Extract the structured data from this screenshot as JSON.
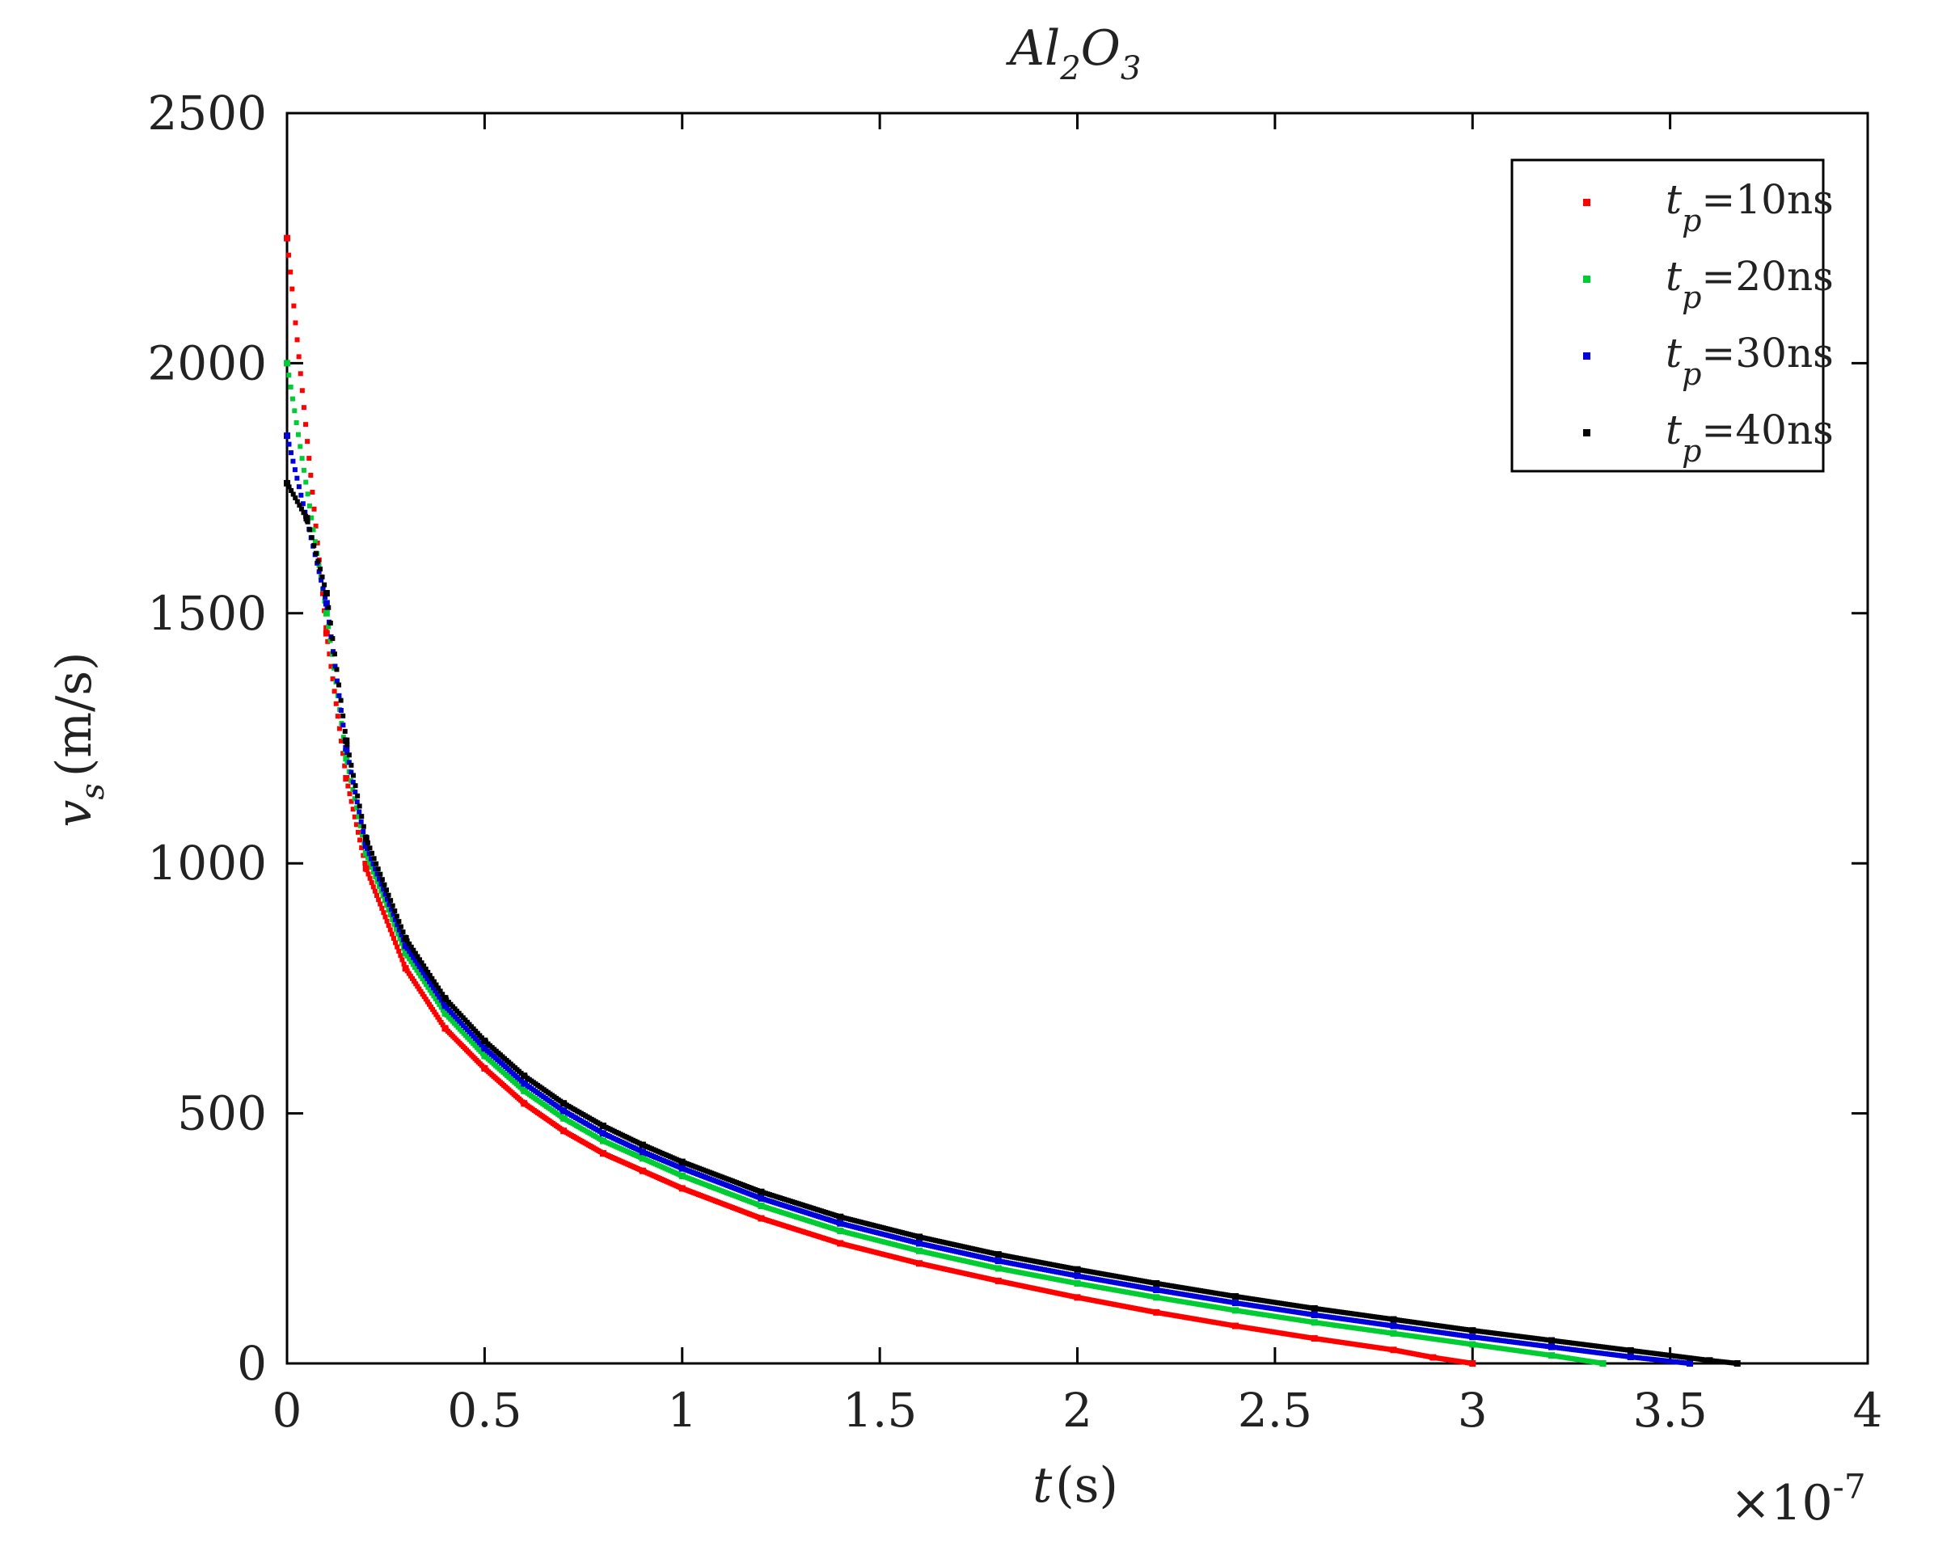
{
  "chart_data": {
    "type": "scatter",
    "title": "Al2O3",
    "title_parts": {
      "base1": "Al",
      "sub1": "2",
      "base2": "O",
      "sub2": "3"
    },
    "xlabel": "t (s)",
    "xlabel_parts": {
      "var": "t",
      "unit": "(s)"
    },
    "ylabel": "v_s (m/s)",
    "ylabel_parts": {
      "var": "v",
      "sub": "s",
      "unit": "(m/s)"
    },
    "x_scale_note": "×10^-7",
    "x_scale_parts": {
      "times": "×10",
      "exp": "-7"
    },
    "x_scale_factor": 1e-07,
    "xlim": [
      0,
      4
    ],
    "ylim": [
      0,
      2500
    ],
    "xticks": [
      "0",
      "0.5",
      "1",
      "1.5",
      "2",
      "2.5",
      "3",
      "3.5",
      "4"
    ],
    "yticks": [
      "0",
      "500",
      "1000",
      "1500",
      "2000",
      "2500"
    ],
    "grid": false,
    "legend_position": "top-right",
    "series": [
      {
        "name": "t_p=10ns",
        "label_parts": {
          "var": "t",
          "sub": "p",
          "rest": "=10ns"
        },
        "color": "#ff0000",
        "x": [
          0.0,
          0.1,
          0.15,
          0.2,
          0.3,
          0.4,
          0.5,
          0.6,
          0.7,
          0.8,
          0.9,
          1.0,
          1.2,
          1.4,
          1.6,
          1.8,
          2.0,
          2.2,
          2.4,
          2.6,
          2.8,
          2.9,
          3.0
        ],
        "y": [
          2250,
          1460,
          1170,
          990,
          790,
          670,
          590,
          520,
          465,
          420,
          385,
          350,
          290,
          240,
          200,
          165,
          132,
          102,
          75,
          50,
          27,
          12,
          0
        ]
      },
      {
        "name": "t_p=20ns",
        "label_parts": {
          "var": "t",
          "sub": "p",
          "rest": "=20ns"
        },
        "color": "#00cc33",
        "x": [
          0.0,
          0.1,
          0.15,
          0.2,
          0.3,
          0.4,
          0.5,
          0.6,
          0.7,
          0.8,
          0.9,
          1.0,
          1.2,
          1.4,
          1.6,
          1.8,
          2.0,
          2.2,
          2.4,
          2.6,
          2.8,
          3.0,
          3.2,
          3.33
        ],
        "y": [
          2000,
          1500,
          1210,
          1020,
          820,
          700,
          615,
          545,
          490,
          445,
          410,
          375,
          315,
          265,
          225,
          190,
          160,
          132,
          106,
          82,
          60,
          38,
          16,
          0
        ]
      },
      {
        "name": "t_p=30ns",
        "label_parts": {
          "var": "t",
          "sub": "p",
          "rest": "=30ns"
        },
        "color": "#0000dd",
        "x": [
          0.0,
          0.1,
          0.15,
          0.2,
          0.3,
          0.4,
          0.5,
          0.6,
          0.7,
          0.8,
          0.9,
          1.0,
          1.2,
          1.4,
          1.6,
          1.8,
          2.0,
          2.2,
          2.4,
          2.6,
          2.8,
          3.0,
          3.2,
          3.4,
          3.55
        ],
        "y": [
          1855,
          1520,
          1230,
          1035,
          835,
          715,
          630,
          560,
          505,
          460,
          423,
          390,
          330,
          280,
          240,
          205,
          175,
          147,
          121,
          97,
          75,
          53,
          33,
          13,
          0
        ]
      },
      {
        "name": "t_p=40ns",
        "label_parts": {
          "var": "t",
          "sub": "p",
          "rest": "=40ns"
        },
        "color": "#000000",
        "x": [
          0.0,
          0.05,
          0.1,
          0.15,
          0.2,
          0.3,
          0.4,
          0.5,
          0.6,
          0.7,
          0.8,
          0.9,
          1.0,
          1.2,
          1.4,
          1.6,
          1.8,
          2.0,
          2.2,
          2.4,
          2.6,
          2.8,
          3.0,
          3.2,
          3.4,
          3.6,
          3.67
        ],
        "y": [
          1760,
          1690,
          1540,
          1245,
          1050,
          850,
          730,
          645,
          575,
          520,
          475,
          437,
          403,
          343,
          293,
          253,
          218,
          188,
          160,
          134,
          110,
          88,
          66,
          46,
          26,
          6,
          0
        ]
      }
    ]
  }
}
